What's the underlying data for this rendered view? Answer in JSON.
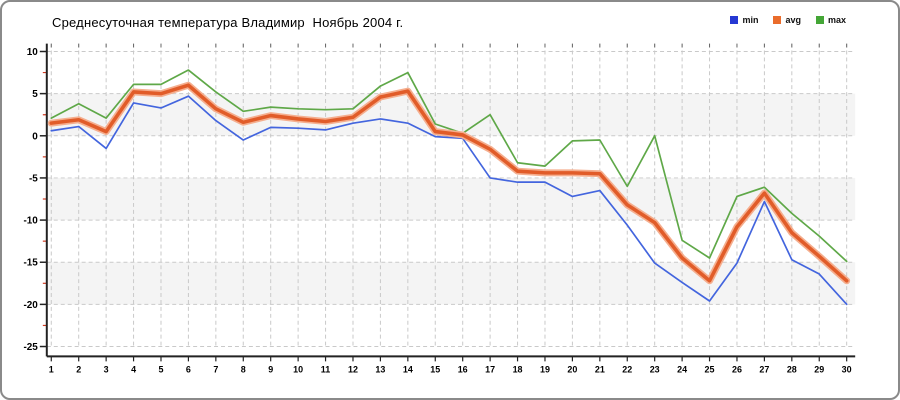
{
  "title": "Среднесуточная температура Владимир  Ноябрь 2004 г.",
  "legend": [
    {
      "label": "min",
      "color": "#2638d3"
    },
    {
      "label": "avg",
      "color": "#ea6c2b"
    },
    {
      "label": "max",
      "color": "#44a636"
    }
  ],
  "chart_data": {
    "type": "line",
    "title": "Среднесуточная температура Владимир  Ноябрь 2004 г.",
    "x": [
      1,
      2,
      3,
      4,
      5,
      6,
      7,
      8,
      9,
      10,
      11,
      12,
      13,
      14,
      15,
      16,
      17,
      18,
      19,
      20,
      21,
      22,
      23,
      24,
      25,
      26,
      27,
      28,
      29,
      30
    ],
    "y_ticks": [
      10,
      5,
      0,
      -5,
      -10,
      -15,
      -20,
      -25
    ],
    "ylim": [
      -25,
      10
    ],
    "y_minor_step": 2.5,
    "grid": "dashed",
    "legend_position": "top-right",
    "grid_color": "#c9c9c9",
    "band_color": "#f4f4f4",
    "axis_color": "#222222",
    "minor_tick_color": "#d03a20",
    "series": [
      {
        "name": "min",
        "color": "#4365de",
        "width": 1.7,
        "values": [
          0.6,
          1.1,
          -1.5,
          3.9,
          3.3,
          4.7,
          1.8,
          -0.5,
          1.0,
          0.9,
          0.7,
          1.5,
          2.0,
          1.5,
          -0.1,
          -0.3,
          -5.0,
          -5.5,
          -5.5,
          -7.2,
          -6.5,
          -10.6,
          -15.1,
          -17.4,
          -19.6,
          -15.1,
          -7.8,
          -14.7,
          -16.4,
          -20.0
        ]
      },
      {
        "name": "avg",
        "color": "#e15c29",
        "halo_color": "#f5ae8e",
        "width": 3.6,
        "values": [
          1.5,
          1.9,
          0.5,
          5.2,
          5.0,
          6.0,
          3.2,
          1.6,
          2.4,
          2.0,
          1.7,
          2.2,
          4.6,
          5.3,
          0.5,
          0.1,
          -1.6,
          -4.2,
          -4.4,
          -4.4,
          -4.5,
          -8.2,
          -10.3,
          -14.5,
          -17.2,
          -10.8,
          -6.8,
          -11.5,
          -14.3,
          -17.2
        ]
      },
      {
        "name": "max",
        "color": "#5fa848",
        "width": 1.7,
        "values": [
          2.1,
          3.8,
          2.1,
          6.1,
          6.1,
          7.8,
          5.2,
          2.9,
          3.4,
          3.2,
          3.1,
          3.2,
          5.9,
          7.5,
          1.4,
          0.3,
          2.5,
          -3.2,
          -3.6,
          -0.6,
          -0.5,
          -6.0,
          0.0,
          -12.4,
          -14.5,
          -7.2,
          -6.1,
          -9.2,
          -11.9,
          -14.9
        ]
      }
    ]
  }
}
